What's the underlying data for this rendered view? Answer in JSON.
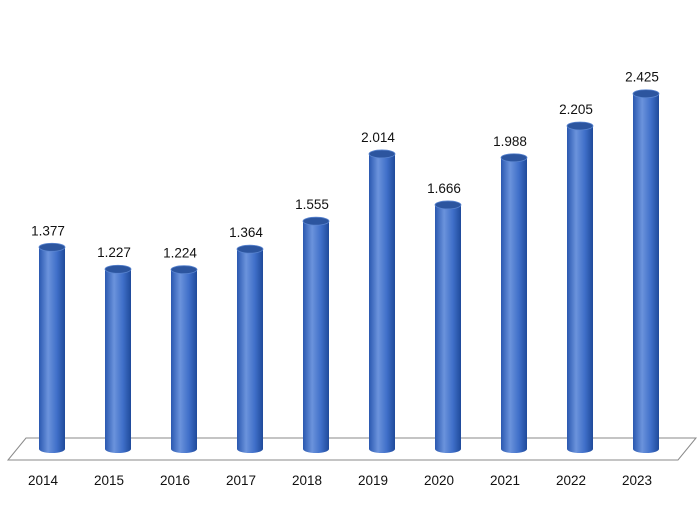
{
  "chart_data": {
    "type": "bar",
    "style": "3d-cylinder",
    "categories": [
      "2014",
      "2015",
      "2016",
      "2017",
      "2018",
      "2019",
      "2020",
      "2021",
      "2022",
      "2023"
    ],
    "values": [
      1.377,
      1.227,
      1.224,
      1.364,
      1.555,
      2.014,
      1.666,
      1.988,
      2.205,
      2.425
    ],
    "value_labels": [
      "1.377",
      "1.227",
      "1.224",
      "1.364",
      "1.555",
      "2.014",
      "1.666",
      "1.988",
      "2.205",
      "2.425"
    ],
    "ylim": [
      0,
      2.6
    ],
    "grid": false,
    "legend": "none",
    "colors": {
      "bar_light": "#6b93dc",
      "bar_main": "#3e6ec8",
      "bar_dark": "#1f4a9a",
      "bar_top": "#2c559f",
      "floor_stroke": "#8a8a8a"
    }
  }
}
